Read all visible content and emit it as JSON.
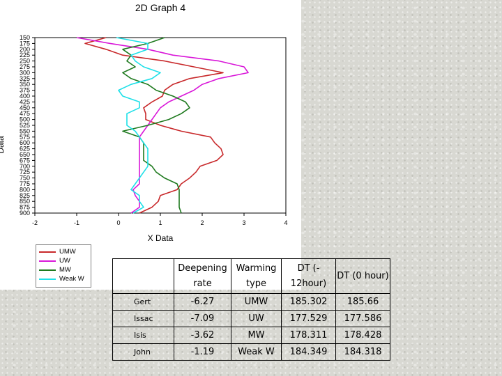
{
  "chart_data": {
    "type": "line",
    "title": "2D Graph 4",
    "xlabel": "X Data",
    "ylabel": "Data",
    "xlim": [
      -2,
      4
    ],
    "ylim": [
      150,
      900
    ],
    "y_inverted": true,
    "xticks": [
      "-2",
      "-1",
      "0",
      "1",
      "2",
      "3",
      "4"
    ],
    "yticks": [
      "150",
      "175",
      "200",
      "225",
      "250",
      "275",
      "300",
      "325",
      "350",
      "375",
      "400",
      "425",
      "450",
      "475",
      "500",
      "525",
      "550",
      "575",
      "600",
      "625",
      "650",
      "675",
      "700",
      "725",
      "750",
      "775",
      "800",
      "825",
      "850",
      "875",
      "900"
    ],
    "legend_position": "bottom-left",
    "y": [
      150,
      175,
      200,
      225,
      250,
      275,
      300,
      325,
      350,
      375,
      400,
      425,
      450,
      475,
      500,
      525,
      550,
      575,
      600,
      625,
      650,
      675,
      700,
      725,
      750,
      775,
      800,
      825,
      850,
      875,
      900
    ],
    "series": [
      {
        "name": "UMW",
        "color": "#c8282a",
        "x": [
          -0.3,
          -0.8,
          -0.3,
          0.1,
          1.1,
          1.8,
          2.5,
          1.7,
          1.3,
          1.1,
          1.05,
          0.8,
          0.6,
          0.65,
          0.65,
          1.0,
          1.5,
          2.2,
          2.3,
          2.45,
          2.5,
          2.35,
          1.95,
          1.85,
          1.7,
          1.5,
          1.4,
          1.0,
          0.95,
          0.8,
          0.5
        ]
      },
      {
        "name": "UW",
        "color": "#d917d9",
        "x": [
          -1.0,
          -0.2,
          0.7,
          1.3,
          2.4,
          3.0,
          3.1,
          2.4,
          2.0,
          1.8,
          1.5,
          1.2,
          1.0,
          0.9,
          0.8,
          0.7,
          0.6,
          0.5,
          0.5,
          0.5,
          0.5,
          0.5,
          0.5,
          0.5,
          0.5,
          0.5,
          0.35,
          0.4,
          0.5,
          0.5,
          0.3
        ]
      },
      {
        "name": "MW",
        "color": "#1f7a1f",
        "x": [
          1.1,
          0.7,
          0.1,
          0.3,
          0.2,
          0.4,
          0.1,
          0.3,
          0.7,
          0.9,
          1.3,
          1.6,
          1.7,
          1.5,
          1.2,
          0.7,
          0.1,
          0.5,
          0.6,
          0.6,
          0.6,
          0.6,
          0.8,
          0.9,
          1.1,
          1.4,
          1.45,
          1.45,
          1.45,
          1.45,
          1.5
        ]
      },
      {
        "name": "Weak W",
        "color": "#1ee0e8",
        "x": [
          -0.05,
          0.7,
          0.7,
          0.3,
          0.4,
          0.6,
          1.0,
          0.8,
          0.3,
          0.0,
          0.1,
          0.5,
          0.5,
          0.2,
          0.2,
          0.2,
          0.4,
          0.5,
          0.6,
          0.7,
          0.7,
          0.7,
          0.7,
          0.6,
          0.5,
          0.4,
          0.3,
          0.5,
          0.5,
          0.6,
          0.35
        ]
      }
    ]
  },
  "table": {
    "headers": [
      "",
      "Deepening rate",
      "Warming type",
      "DT (-12hour)",
      "DT (0 hour)"
    ],
    "header_lines": [
      [
        ""
      ],
      [
        "Deepening",
        "rate"
      ],
      [
        "Warming",
        "type"
      ],
      [
        "DT (-",
        "12hour)"
      ],
      [
        "DT (0 hour)"
      ]
    ],
    "rows": [
      {
        "name": "Gert",
        "cells": [
          "-6.27",
          "UMW",
          "185.302",
          "185.66"
        ]
      },
      {
        "name": "Issac",
        "cells": [
          "-7.09",
          "UW",
          "177.529",
          "177.586"
        ]
      },
      {
        "name": "Isis",
        "cells": [
          "-3.62",
          "MW",
          "178.311",
          "178.428"
        ]
      },
      {
        "name": "John",
        "cells": [
          "-1.19",
          "Weak W",
          "184.349",
          "184.318"
        ]
      }
    ]
  }
}
